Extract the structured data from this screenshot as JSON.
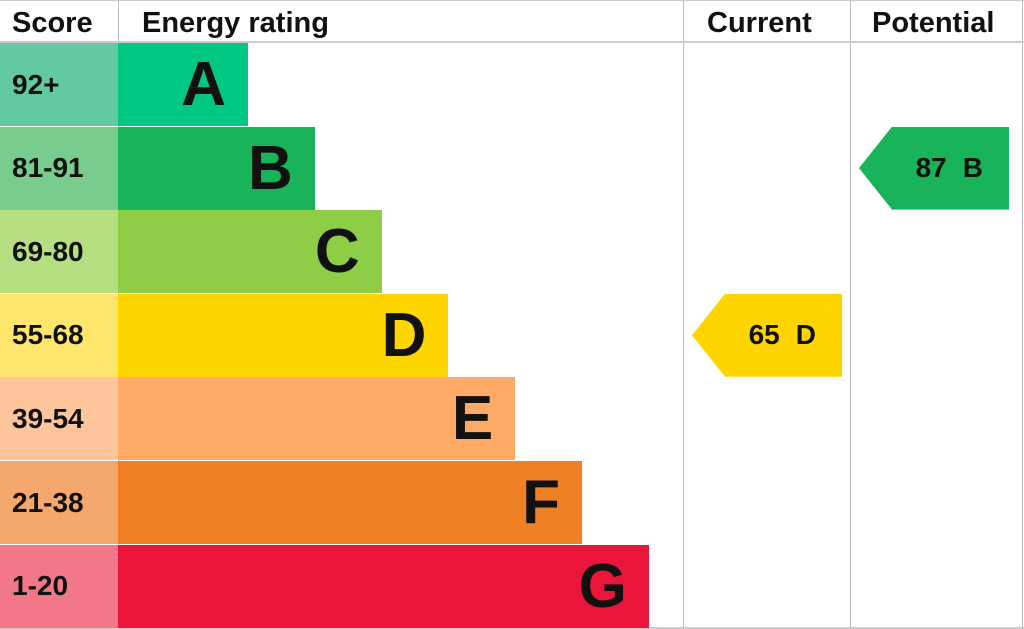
{
  "chart_data": {
    "type": "bar",
    "headers": {
      "score": "Score",
      "rating": "Energy rating",
      "current": "Current",
      "potential": "Potential"
    },
    "bands": [
      {
        "range": "92+",
        "letter": "A",
        "color": "#00c781",
        "tint": "#63c9a0"
      },
      {
        "range": "81-91",
        "letter": "B",
        "color": "#19b459",
        "tint": "#78cc8e"
      },
      {
        "range": "69-80",
        "letter": "C",
        "color": "#8dce46",
        "tint": "#b6df82"
      },
      {
        "range": "55-68",
        "letter": "D",
        "color": "#ffd500",
        "tint": "#fee56c"
      },
      {
        "range": "39-54",
        "letter": "E",
        "color": "#fcaa65",
        "tint": "#fdc59c"
      },
      {
        "range": "21-38",
        "letter": "F",
        "color": "#ef8023",
        "tint": "#f5a86e"
      },
      {
        "range": "1-20",
        "letter": "G",
        "color": "#e9153b",
        "tint": "#f27889"
      }
    ],
    "current": {
      "value": "65",
      "letter": "D"
    },
    "potential": {
      "value": "87",
      "letter": "B"
    }
  }
}
